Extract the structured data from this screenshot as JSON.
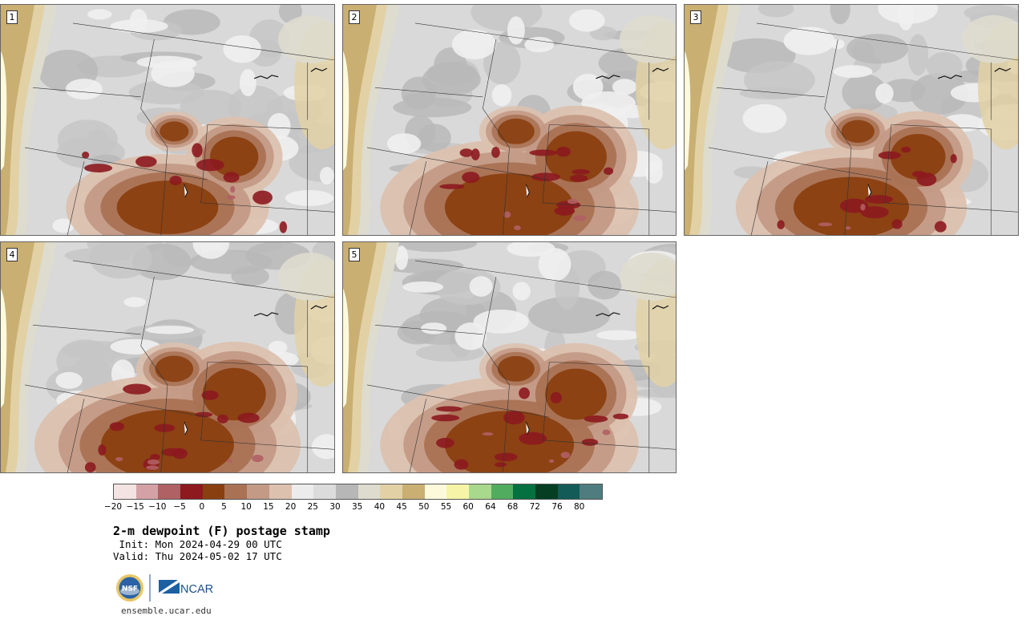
{
  "panels": [
    {
      "label": "1",
      "intensity": 0.45
    },
    {
      "label": "2",
      "intensity": 0.85
    },
    {
      "label": "3",
      "intensity": 0.65
    },
    {
      "label": "4",
      "intensity": 0.9
    },
    {
      "label": "5",
      "intensity": 0.85
    }
  ],
  "colorbar": {
    "colors": [
      "#f3e4e3",
      "#d4a2a6",
      "#b06164",
      "#8c1a1f",
      "#8a3f10",
      "#aa7254",
      "#c39a86",
      "#dcc1af",
      "#ececec",
      "#dcdcdc",
      "#b7b7b7",
      "#dedcce",
      "#e2d1a4",
      "#c9af72",
      "#fdfadc",
      "#f6f5a7",
      "#a9d98c",
      "#52ac5f",
      "#057040",
      "#053e23",
      "#135b57",
      "#4f7c7f"
    ],
    "ticks": [
      "−20",
      "−15",
      "−10",
      "−5",
      "0",
      "5",
      "10",
      "15",
      "20",
      "25",
      "30",
      "35",
      "40",
      "45",
      "50",
      "55",
      "60",
      "64",
      "68",
      "72",
      "76",
      "80"
    ]
  },
  "title": "2-m dewpoint (F) postage stamp",
  "init": " Init: Mon 2024-04-29 00 UTC",
  "valid": "Valid: Thu 2024-05-02 17 UTC",
  "logo": {
    "nsf": "NSF",
    "ncar": "NCAR"
  },
  "website": "ensemble.ucar.edu"
}
